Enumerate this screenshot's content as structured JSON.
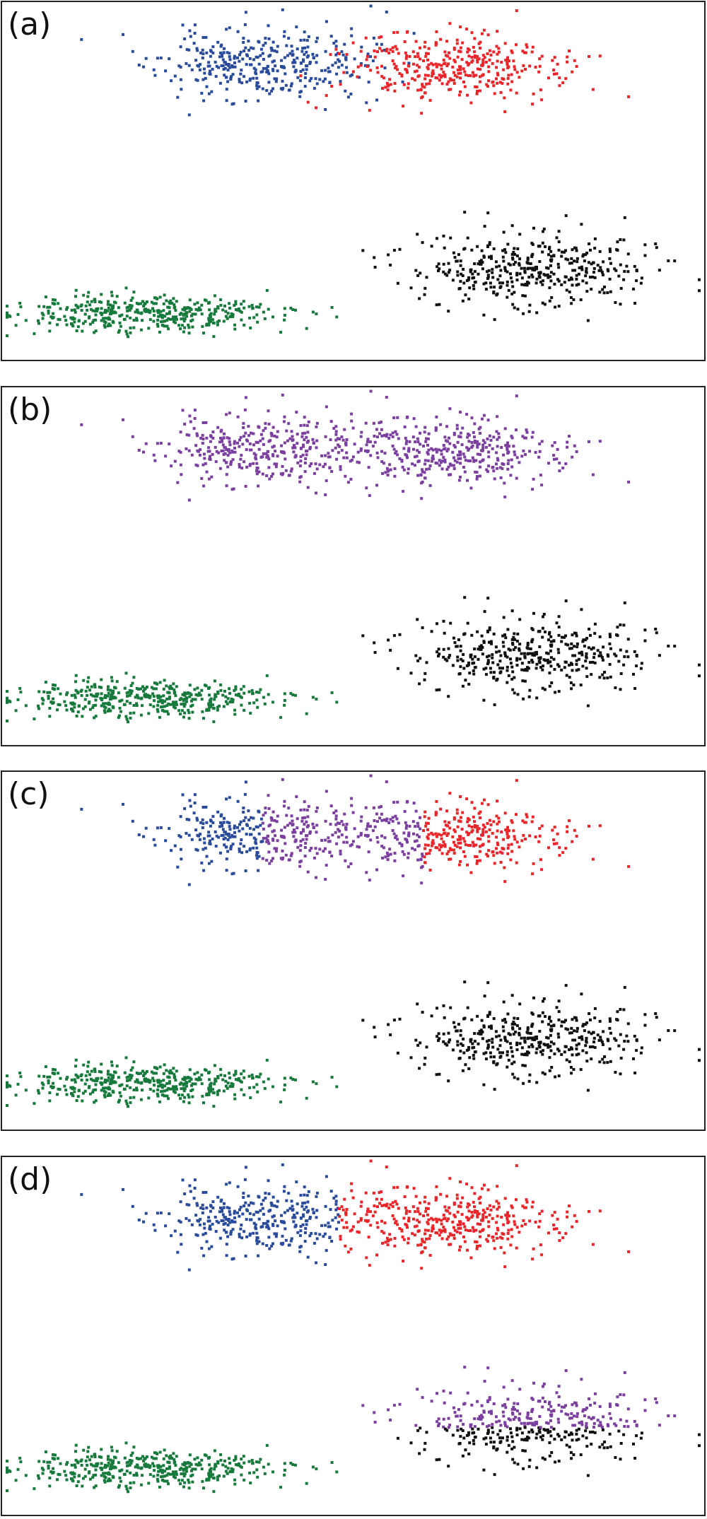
{
  "chart_data": [
    {
      "type": "scatter",
      "panel_label": "(a)",
      "xlim": [
        0,
        100
      ],
      "ylim": [
        0,
        100
      ],
      "grid": false,
      "clusters": [
        {
          "color": "#2a4b9b",
          "center": [
            37,
            83
          ],
          "spread": [
            7.5,
            5.0
          ],
          "count": 360,
          "seed": 11
        },
        {
          "color": "#e8262a",
          "center": [
            64,
            82
          ],
          "spread": [
            7.5,
            5.0
          ],
          "count": 360,
          "seed": 23
        },
        {
          "color": "#111111",
          "center": [
            76,
            25
          ],
          "spread": [
            8.5,
            5.2
          ],
          "count": 400,
          "seed": 37
        },
        {
          "color": "#177a3c",
          "center": [
            20,
            12
          ],
          "spread": [
            9.5,
            2.6
          ],
          "count": 420,
          "seed": 51
        }
      ]
    },
    {
      "type": "scatter",
      "panel_label": "(b)",
      "xlim": [
        0,
        100
      ],
      "ylim": [
        0,
        100
      ],
      "grid": false,
      "clusters": [
        {
          "color": "#7b3fa0",
          "center": [
            37,
            83
          ],
          "spread": [
            7.5,
            5.0
          ],
          "count": 360,
          "seed": 11
        },
        {
          "color": "#7b3fa0",
          "center": [
            64,
            82
          ],
          "spread": [
            7.5,
            5.0
          ],
          "count": 360,
          "seed": 23
        },
        {
          "color": "#111111",
          "center": [
            76,
            25
          ],
          "spread": [
            8.5,
            5.2
          ],
          "count": 400,
          "seed": 37
        },
        {
          "color": "#177a3c",
          "center": [
            20,
            12
          ],
          "spread": [
            9.5,
            2.6
          ],
          "count": 420,
          "seed": 51
        }
      ]
    },
    {
      "type": "scatter",
      "panel_label": "(c)",
      "xlim": [
        0,
        100
      ],
      "ylim": [
        0,
        100
      ],
      "grid": false,
      "recolor_x": {
        "low_color": "#2a4b9b",
        "mid_color": "#7b3fa0",
        "high_color": "#e8262a",
        "low_max": 37,
        "high_min": 60,
        "applies_to": [
          0,
          1
        ]
      },
      "clusters": [
        {
          "color": "#2a4b9b",
          "center": [
            37,
            83
          ],
          "spread": [
            7.5,
            5.0
          ],
          "count": 360,
          "seed": 11
        },
        {
          "color": "#e8262a",
          "center": [
            64,
            82
          ],
          "spread": [
            7.5,
            5.0
          ],
          "count": 360,
          "seed": 23
        },
        {
          "color": "#111111",
          "center": [
            76,
            25
          ],
          "spread": [
            8.5,
            5.2
          ],
          "count": 400,
          "seed": 37
        },
        {
          "color": "#177a3c",
          "center": [
            20,
            12
          ],
          "spread": [
            9.5,
            2.6
          ],
          "count": 420,
          "seed": 51
        }
      ]
    },
    {
      "type": "scatter",
      "panel_label": "(d)",
      "xlim": [
        0,
        100
      ],
      "ylim": [
        0,
        100
      ],
      "grid": false,
      "recolor_split": {
        "top_color": "#7b3fa0",
        "bottom_color": "#111111",
        "y_split": 24,
        "applies_to": 2
      },
      "recolor_x_split": {
        "left_color": "#2a4b9b",
        "right_color": "#e8262a",
        "x_split": 48,
        "applies_to": [
          0,
          1
        ]
      },
      "clusters": [
        {
          "color": "#2a4b9b",
          "center": [
            37,
            83
          ],
          "spread": [
            7.5,
            5.0
          ],
          "count": 360,
          "seed": 11
        },
        {
          "color": "#e8262a",
          "center": [
            64,
            82
          ],
          "spread": [
            7.5,
            5.0
          ],
          "count": 360,
          "seed": 23
        },
        {
          "color": "#111111",
          "center": [
            76,
            25
          ],
          "spread": [
            8.5,
            5.2
          ],
          "count": 400,
          "seed": 37
        },
        {
          "color": "#177a3c",
          "center": [
            20,
            12
          ],
          "spread": [
            9.5,
            2.6
          ],
          "count": 420,
          "seed": 51
        }
      ]
    }
  ]
}
